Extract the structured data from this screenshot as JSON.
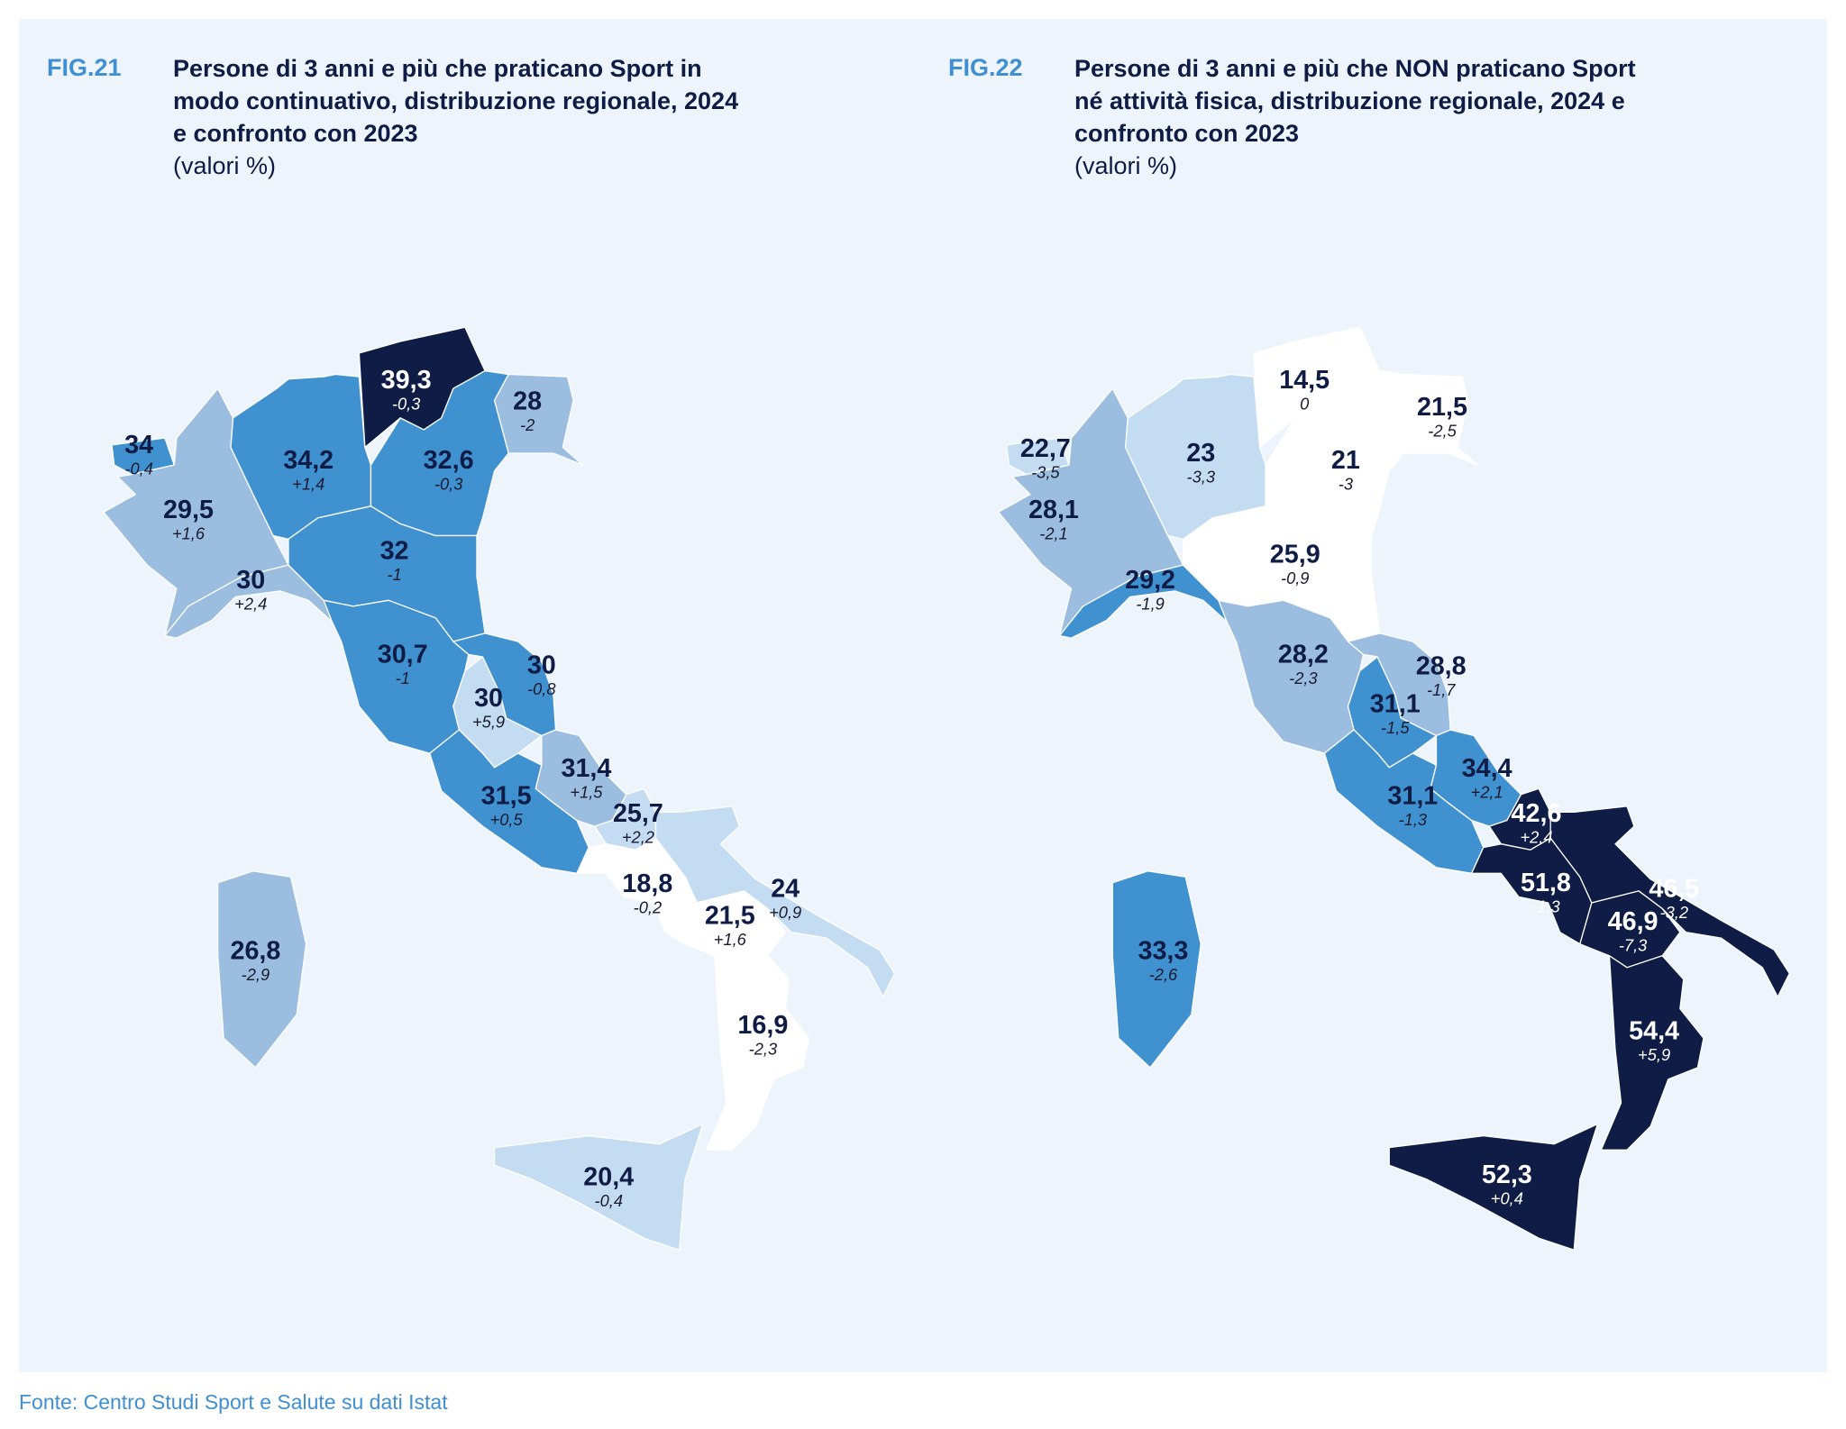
{
  "figures": [
    {
      "fig_label": "FIG.21",
      "title": "Persone di 3 anni e più che praticano Sport in modo continuativo, distribuzione regionale, 2024 e confronto con 2023",
      "unit": "(valori %)",
      "regions": {
        "valle_daosta": {
          "value": "34",
          "delta": "-0,4",
          "fill": "#4091cf"
        },
        "piemonte": {
          "value": "29,5",
          "delta": "+1,6",
          "fill": "#9bbde0"
        },
        "liguria": {
          "value": "30",
          "delta": "+2,4",
          "fill": "#9bbde0"
        },
        "lombardia": {
          "value": "34,2",
          "delta": "+1,4",
          "fill": "#4091cf"
        },
        "trentino": {
          "value": "39,3",
          "delta": "-0,3",
          "fill": "#0f1c45"
        },
        "veneto": {
          "value": "32,6",
          "delta": "-0,3",
          "fill": "#4091cf"
        },
        "friuli": {
          "value": "28",
          "delta": "-2",
          "fill": "#9bbde0"
        },
        "emilia": {
          "value": "32",
          "delta": "-1",
          "fill": "#4091cf"
        },
        "toscana": {
          "value": "30,7",
          "delta": "-1",
          "fill": "#4091cf"
        },
        "umbria": {
          "value": "30",
          "delta": "+5,9",
          "fill": "#c4dcf1"
        },
        "marche": {
          "value": "30",
          "delta": "-0,8",
          "fill": "#4091cf"
        },
        "lazio": {
          "value": "31,5",
          "delta": "+0,5",
          "fill": "#4091cf"
        },
        "abruzzo": {
          "value": "31,4",
          "delta": "+1,5",
          "fill": "#9bbde0"
        },
        "molise": {
          "value": "25,7",
          "delta": "+2,2",
          "fill": "#c4dcf1"
        },
        "campania": {
          "value": "18,8",
          "delta": "-0,2",
          "fill": "#ffffff"
        },
        "puglia": {
          "value": "24",
          "delta": "+0,9",
          "fill": "#c4dcf1"
        },
        "basilicata": {
          "value": "21,5",
          "delta": "+1,6",
          "fill": "#ffffff"
        },
        "calabria": {
          "value": "16,9",
          "delta": "-2,3",
          "fill": "#ffffff"
        },
        "sicilia": {
          "value": "20,4",
          "delta": "-0,4",
          "fill": "#c4dcf1"
        },
        "sardegna": {
          "value": "26,8",
          "delta": "-2,9",
          "fill": "#9bbde0"
        }
      }
    },
    {
      "fig_label": "FIG.22",
      "title": "Persone di 3 anni e più che NON praticano Sport né attività fisica, distribuzione regionale, 2024 e confronto con 2023",
      "unit": "(valori %)",
      "regions": {
        "valle_daosta": {
          "value": "22,7",
          "delta": "-3,5",
          "fill": "#c4dcf1"
        },
        "piemonte": {
          "value": "28,1",
          "delta": "-2,1",
          "fill": "#9bbde0"
        },
        "liguria": {
          "value": "29,2",
          "delta": "-1,9",
          "fill": "#4091cf"
        },
        "lombardia": {
          "value": "23",
          "delta": "-3,3",
          "fill": "#c4dcf1"
        },
        "trentino": {
          "value": "14,5",
          "delta": "0",
          "fill": "#ffffff"
        },
        "veneto": {
          "value": "21",
          "delta": "-3",
          "fill": "#ffffff"
        },
        "friuli": {
          "value": "21,5",
          "delta": "-2,5",
          "fill": "#ffffff"
        },
        "emilia": {
          "value": "25,9",
          "delta": "-0,9",
          "fill": "#ffffff"
        },
        "toscana": {
          "value": "28,2",
          "delta": "-2,3",
          "fill": "#9bbde0"
        },
        "umbria": {
          "value": "31,1",
          "delta": "-1,5",
          "fill": "#4091cf"
        },
        "marche": {
          "value": "28,8",
          "delta": "-1,7",
          "fill": "#9bbde0"
        },
        "lazio": {
          "value": "31,1",
          "delta": "-1,3",
          "fill": "#4091cf"
        },
        "abruzzo": {
          "value": "34,4",
          "delta": "+2,1",
          "fill": "#4091cf"
        },
        "molise": {
          "value": "42,6",
          "delta": "+2,4",
          "fill": "#0f1c45"
        },
        "campania": {
          "value": "51,8",
          "delta": "-1,3",
          "fill": "#0f1c45"
        },
        "puglia": {
          "value": "46,5",
          "delta": "-3,2",
          "fill": "#0f1c45"
        },
        "basilicata": {
          "value": "46,9",
          "delta": "-7,3",
          "fill": "#0f1c45"
        },
        "calabria": {
          "value": "54,4",
          "delta": "+5,9",
          "fill": "#0f1c45"
        },
        "sicilia": {
          "value": "52,3",
          "delta": "+0,4",
          "fill": "#0f1c45"
        },
        "sardegna": {
          "value": "33,3",
          "delta": "-2,6",
          "fill": "#4091cf"
        }
      }
    }
  ],
  "source": "Fonte: Centro Studi Sport e Salute su dati Istat"
}
